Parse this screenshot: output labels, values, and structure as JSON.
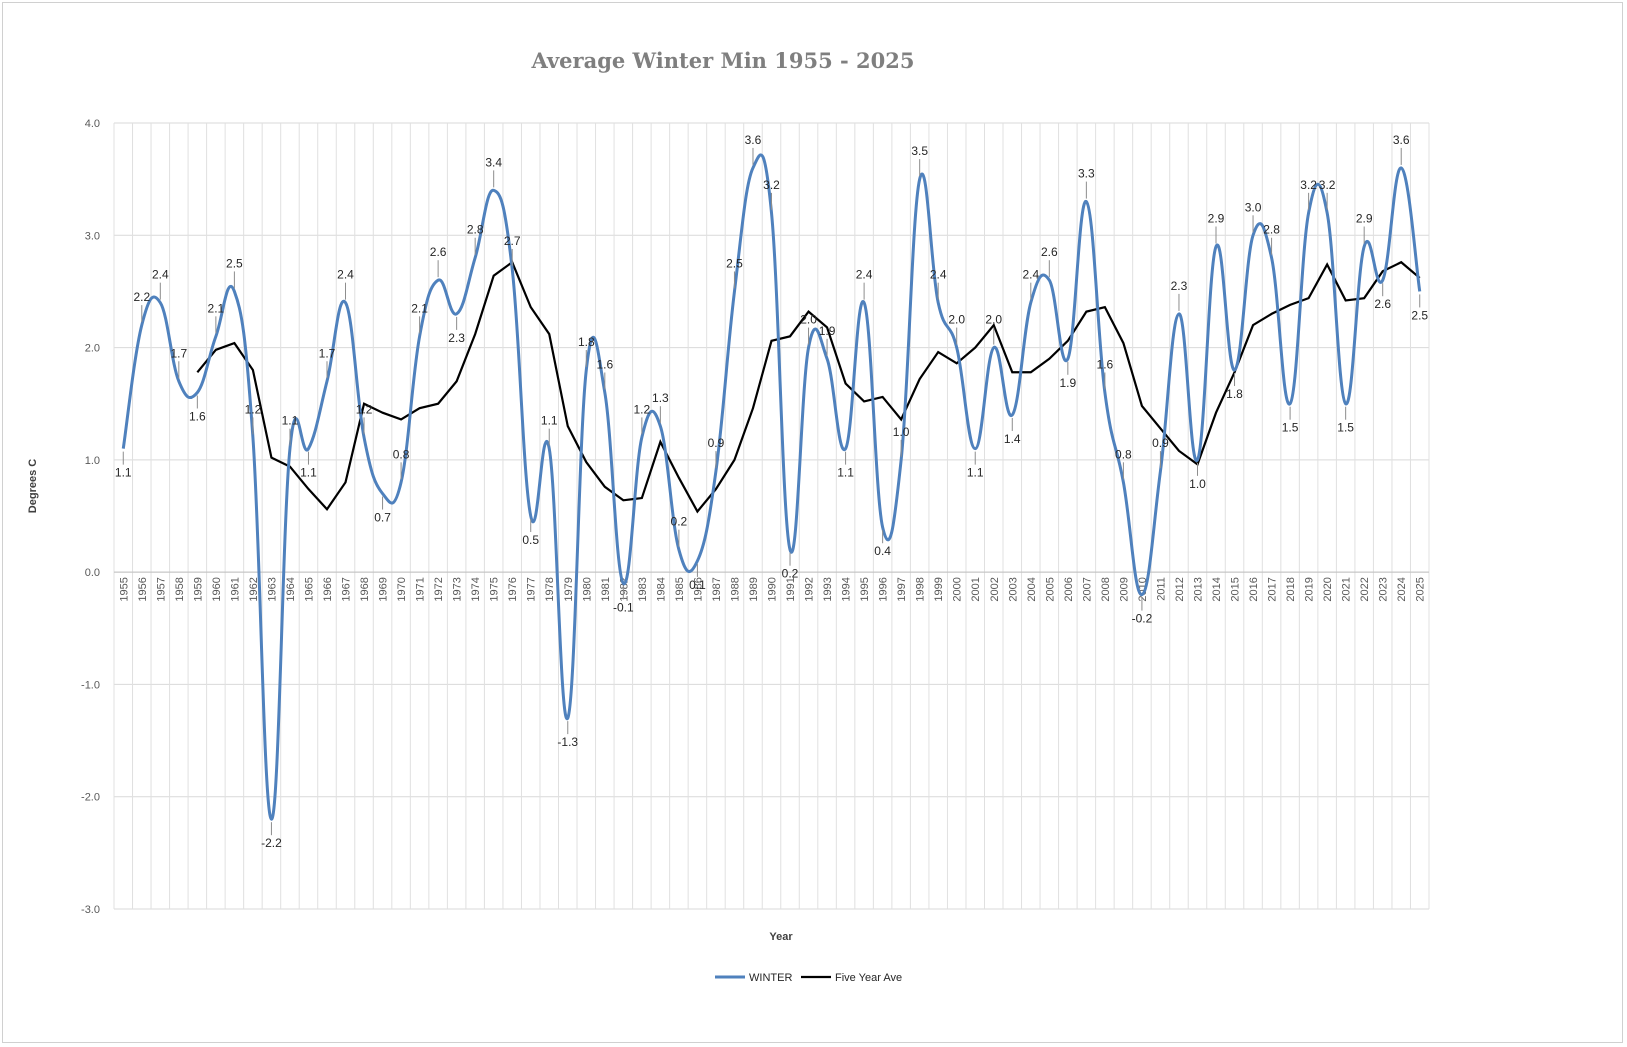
{
  "chart_data": {
    "type": "line",
    "title": "Average Winter Min 1955 - 2025",
    "xlabel": "Year",
    "ylabel": "Degrees C",
    "ylim": [
      -3.0,
      4.0
    ],
    "yticks": [
      "4.0",
      "3.0",
      "2.0",
      "1.0",
      "0.0",
      "-1.0",
      "-2.0",
      "-3.0"
    ],
    "ytick_values": [
      4,
      3,
      2,
      1,
      0,
      -1,
      -2,
      -3
    ],
    "grid": true,
    "legend_position": "bottom",
    "categories": [
      "1955",
      "1956",
      "1957",
      "1958",
      "1959",
      "1960",
      "1961",
      "1962",
      "1963",
      "1964",
      "1965",
      "1966",
      "1967",
      "1968",
      "1969",
      "1970",
      "1971",
      "1972",
      "1973",
      "1974",
      "1975",
      "1976",
      "1977",
      "1978",
      "1979",
      "1980",
      "1981",
      "1982",
      "1983",
      "1984",
      "1985",
      "1986",
      "1987",
      "1988",
      "1989",
      "1990",
      "1991",
      "1992",
      "1993",
      "1994",
      "1995",
      "1996",
      "1997",
      "1998",
      "1999",
      "2000",
      "2001",
      "2002",
      "2003",
      "2004",
      "2005",
      "2006",
      "2007",
      "2008",
      "2009",
      "2010",
      "2011",
      "2012",
      "2013",
      "2014",
      "2015",
      "2016",
      "2017",
      "2018",
      "2019",
      "2020",
      "2021",
      "2022",
      "2023",
      "2024",
      "2025"
    ],
    "series": [
      {
        "name": "WINTER",
        "color": "#4f81bd",
        "style": "smooth",
        "values": [
          1.1,
          2.2,
          2.4,
          1.7,
          1.6,
          2.1,
          2.5,
          1.2,
          -2.2,
          1.1,
          1.1,
          1.7,
          2.4,
          1.2,
          0.7,
          0.8,
          2.1,
          2.6,
          2.3,
          2.8,
          3.4,
          2.7,
          0.5,
          1.1,
          -1.3,
          1.8,
          1.6,
          -0.1,
          1.2,
          1.3,
          0.2,
          0.1,
          0.9,
          2.5,
          3.6,
          3.2,
          0.2,
          2.0,
          1.9,
          1.1,
          2.4,
          0.4,
          1.0,
          3.5,
          2.4,
          2.0,
          1.1,
          2.0,
          1.4,
          2.4,
          2.6,
          1.9,
          3.3,
          1.6,
          0.8,
          -0.2,
          0.9,
          2.3,
          1.0,
          2.9,
          1.8,
          3.0,
          2.8,
          1.5,
          3.2,
          3.2,
          1.5,
          2.9,
          2.6,
          3.6,
          2.5
        ],
        "labels": [
          "1.1",
          "2.2",
          "2.4",
          "1.7",
          "1.6",
          "2.1",
          "2.5",
          "1.2",
          "-2.2",
          "1.1",
          "1.1",
          "1.7",
          "2.4",
          "1.2",
          "0.7",
          "0.8",
          "2.1",
          "2.6",
          "2.3",
          "2.8",
          "3.4",
          "2.7",
          "0.5",
          "1.1",
          "-1.3",
          "1.8",
          "1.6",
          "-0.1",
          "1.2",
          "1.3",
          "0.2",
          "0.1",
          "0.9",
          "2.5",
          "3.6",
          "3.2",
          "0.2",
          "2.0",
          "1.9",
          "1.1",
          "2.4",
          "0.4",
          "1.0",
          "3.5",
          "2.4",
          "2.0",
          "1.1",
          "2.0",
          "1.4",
          "2.4",
          "2.6",
          "1.9",
          "3.3",
          "1.6",
          "0.8",
          "-0.2",
          "0.9",
          "2.3",
          "1.0",
          "2.9",
          "1.8",
          "3.0",
          "2.8",
          "1.5",
          "3.2",
          "3.2",
          "1.5",
          "2.9",
          "2.6",
          "3.6",
          "2.5"
        ]
      },
      {
        "name": "Five Year Ave",
        "color": "#000000",
        "style": "straight",
        "values": [
          null,
          null,
          null,
          null,
          1.78,
          1.98,
          2.04,
          1.8,
          1.02,
          0.94,
          0.74,
          0.56,
          0.8,
          1.5,
          1.42,
          1.36,
          1.46,
          1.5,
          1.7,
          2.12,
          2.64,
          2.76,
          2.36,
          2.12,
          1.3,
          0.98,
          0.76,
          0.64,
          0.66,
          1.16,
          0.84,
          0.54,
          0.74,
          1.0,
          1.46,
          2.06,
          2.1,
          2.32,
          2.18,
          1.68,
          1.52,
          1.56,
          1.36,
          1.72,
          1.96,
          1.86,
          2.0,
          2.2,
          1.78,
          1.78,
          1.9,
          2.06,
          2.32,
          2.36,
          2.04,
          1.48,
          1.28,
          1.08,
          0.96,
          1.42,
          1.78,
          2.2,
          2.3,
          2.38,
          2.44,
          2.74,
          2.42,
          2.44,
          2.68,
          2.76,
          2.62
        ]
      }
    ]
  }
}
